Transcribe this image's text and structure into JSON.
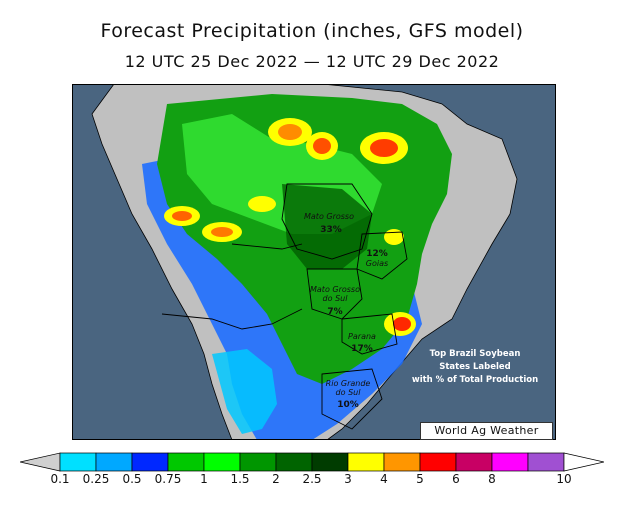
{
  "title": "Forecast Precipitation (inches, GFS model)",
  "subtitle": "12 UTC 25 Dec 2022 — 12 UTC 29 Dec 2022",
  "credit": "World Ag Weather",
  "note": [
    "Top Brazil Soybean",
    "States Labeled",
    "with % of Total Production"
  ],
  "states": [
    {
      "name": "Mato Grosso",
      "pct": "33%"
    },
    {
      "name": "Goias",
      "pct": "12%"
    },
    {
      "name": "Mato Grosso do Sul",
      "pct": "7%"
    },
    {
      "name": "Parana",
      "pct": "17%"
    },
    {
      "name": "Rio Grande do Sul",
      "pct": "10%"
    }
  ],
  "legend": {
    "bins": [
      {
        "label": "0.1",
        "color": "#00e0ff"
      },
      {
        "label": "0.25",
        "color": "#00a8ff"
      },
      {
        "label": "0.5",
        "color": "#0028ff"
      },
      {
        "label": "0.75",
        "color": "#00c800"
      },
      {
        "label": "1",
        "color": "#00ff00"
      },
      {
        "label": "1.5",
        "color": "#009600"
      },
      {
        "label": "2",
        "color": "#006400"
      },
      {
        "label": "2.5",
        "color": "#003c00"
      },
      {
        "label": "3",
        "color": "#ffff00"
      },
      {
        "label": "4",
        "color": "#ff9600"
      },
      {
        "label": "5",
        "color": "#ff0000"
      },
      {
        "label": "6",
        "color": "#c80064"
      },
      {
        "label": "8",
        "color": "#ff00ff"
      },
      {
        "label": "10",
        "color": "#a050d2"
      }
    ]
  }
}
